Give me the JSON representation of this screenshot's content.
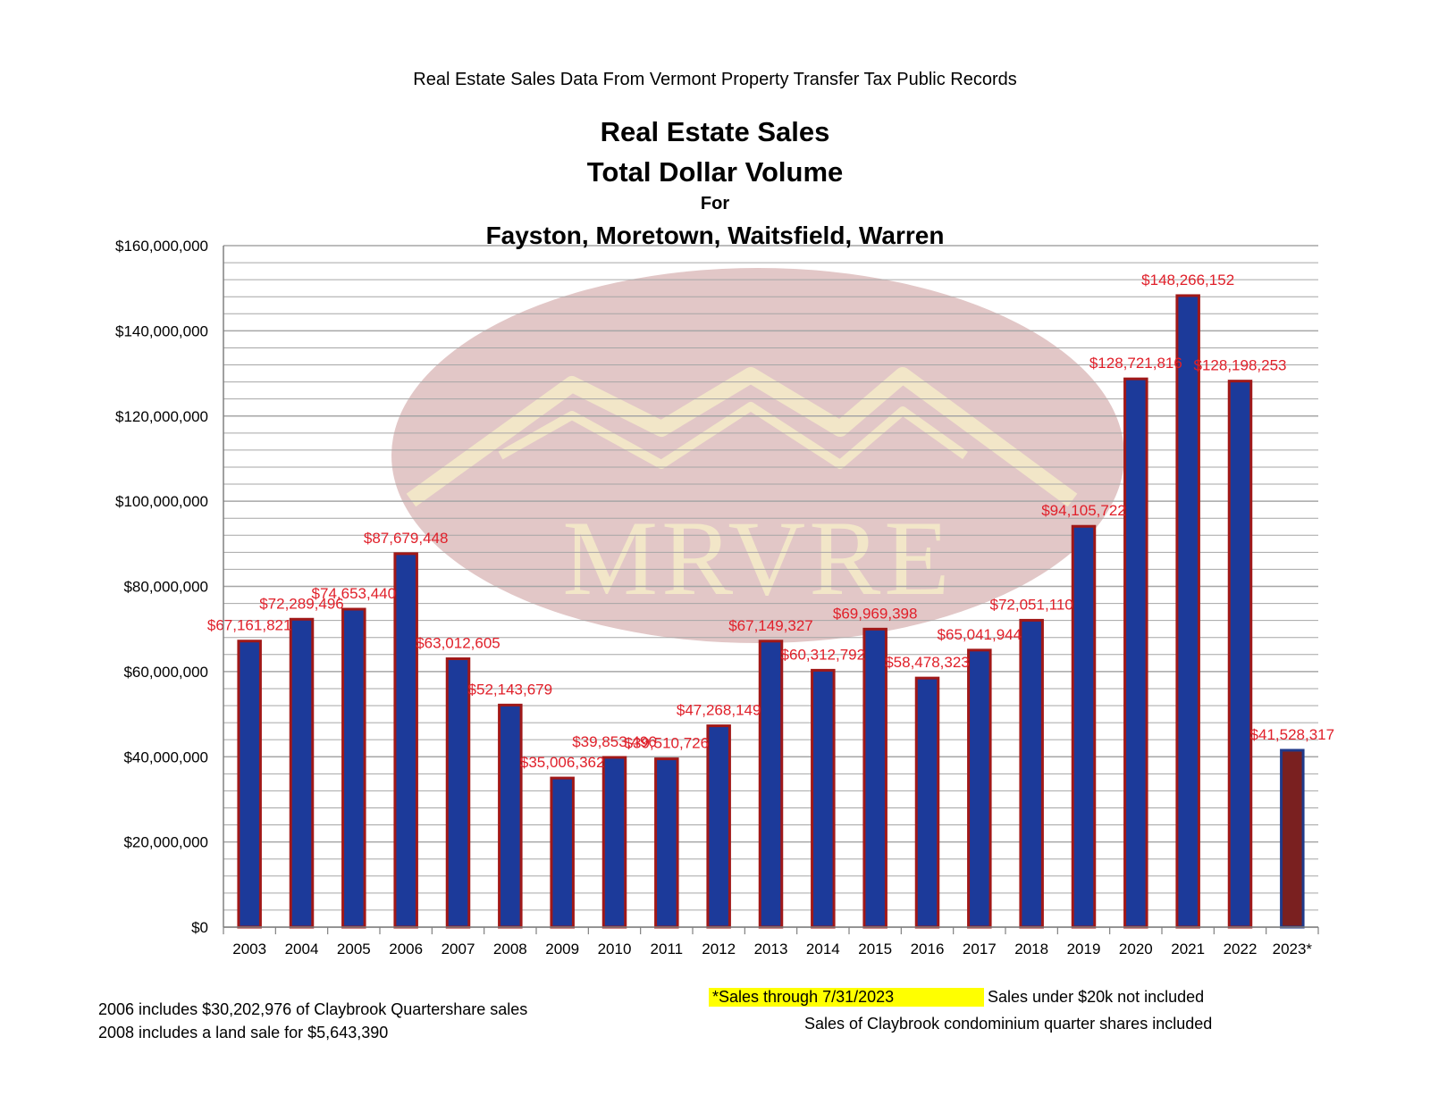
{
  "colors": {
    "bar_fill": "#1c3a9a",
    "bar_outline": "#a01818",
    "last_bar_fill": "#7a2020",
    "last_bar_outline": "#1f3a8a",
    "data_label": "#e0202a",
    "gridline": "#a6a6a6",
    "highlight": "#ffff00",
    "watermark_ellipse": "#d8b4b4",
    "watermark_text": "#f2e6c8"
  },
  "header": {
    "supertitle": "Real Estate Sales Data From Vermont Property Transfer Tax Public Records",
    "title_line1": "Real Estate Sales",
    "title_line2": "Total Dollar Volume",
    "title_line3": "For",
    "title_line4": "Fayston, Moretown, Waitsfield, Warren"
  },
  "watermark": {
    "text": "MRVRE"
  },
  "notes": {
    "claybrook_2006": "2006 includes $30,202,976 of Claybrook Quartershare sales",
    "land_sale_2008": "2008 includes a land sale for $5,643,390",
    "sales_through": "*Sales through 7/31/2023",
    "under_20k": "Sales under $20k not included",
    "condo_shares": "Sales of Claybrook condominium quarter shares included"
  },
  "chart_data": {
    "type": "bar",
    "title": "Real Estate Sales Total Dollar Volume For Fayston, Moretown, Waitsfield, Warren",
    "xlabel": "",
    "ylabel": "",
    "ylim": [
      0,
      160000000
    ],
    "yticks": [
      0,
      20000000,
      40000000,
      60000000,
      80000000,
      100000000,
      120000000,
      140000000,
      160000000
    ],
    "ytick_labels": [
      "$0",
      "$20,000,000",
      "$40,000,000",
      "$60,000,000",
      "$80,000,000",
      "$100,000,000",
      "$120,000,000",
      "$140,000,000",
      "$160,000,000"
    ],
    "grid": true,
    "legend": "none",
    "categories": [
      "2003",
      "2004",
      "2005",
      "2006",
      "2007",
      "2008",
      "2009",
      "2010",
      "2011",
      "2012",
      "2013",
      "2014",
      "2015",
      "2016",
      "2017",
      "2018",
      "2019",
      "2020",
      "2021",
      "2022",
      "2023*"
    ],
    "values": [
      67161821,
      72289496,
      74653440,
      87679448,
      63012605,
      52143679,
      35006362,
      39853496,
      39510726,
      47268149,
      67149327,
      60312792,
      69969398,
      58478323,
      65041944,
      72051110,
      94105722,
      128721816,
      148266152,
      128198253,
      41528317
    ],
    "data_labels": [
      "$67,161,821",
      "$72,289,496",
      "$74,653,440",
      "$87,679,448",
      "$63,012,605",
      "$52,143,679",
      "$35,006,362",
      "$39,853,496",
      "$39,510,726",
      "$47,268,149",
      "$67,149,327",
      "$60,312,792",
      "$69,969,398",
      "$58,478,323",
      "$65,041,944",
      "$72,051,110",
      "$94,105,722",
      "$128,721,816",
      "$148,266,152",
      "$128,198,253",
      "$41,528,317"
    ]
  }
}
